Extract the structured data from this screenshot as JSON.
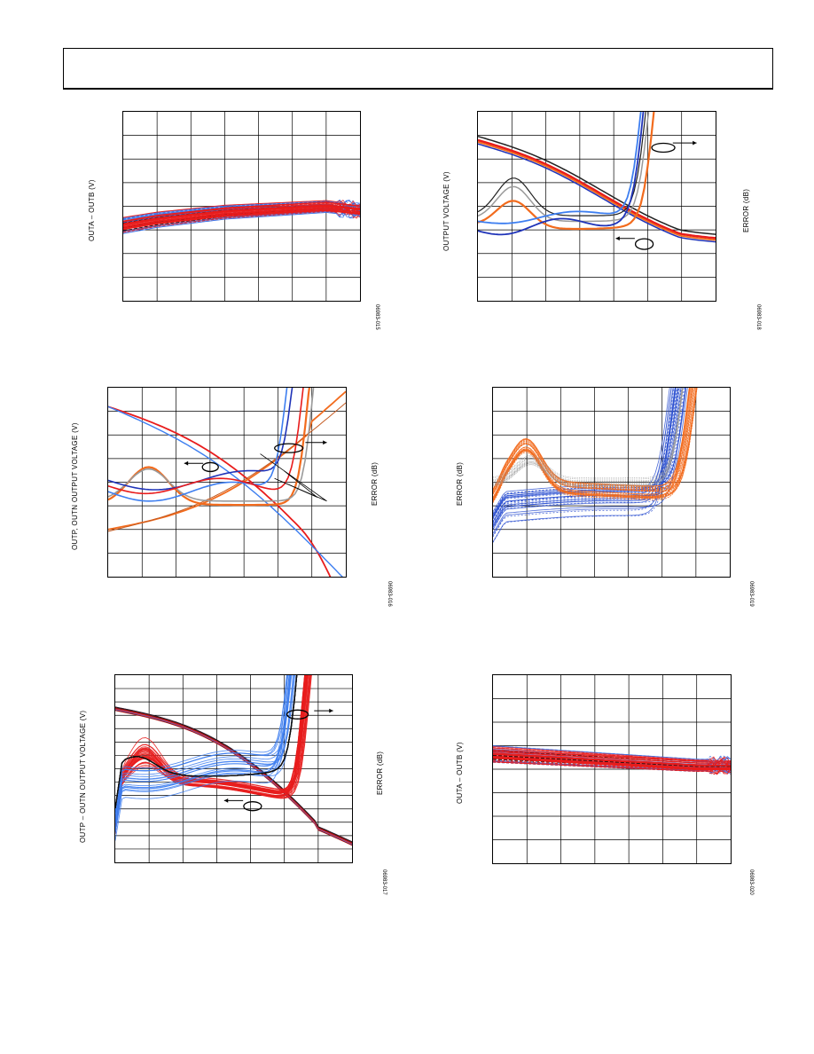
{
  "page": {
    "header_text": ""
  },
  "figures": [
    {
      "id": "p1",
      "ylabel": "OUTA – OUTB (V)",
      "ylabel2": "",
      "code": "06983-015"
    },
    {
      "id": "p2",
      "ylabel": "OUTPUT VOLTAGE (V)",
      "ylabel2": "ERROR (dB)",
      "code": "06983-018"
    },
    {
      "id": "p3",
      "ylabel": "OUTP, OUTN OUTPUT VOLTAGE (V)",
      "ylabel2": "ERROR (dB)",
      "code": "06983-016"
    },
    {
      "id": "p4",
      "ylabel": "ERROR (dB)",
      "ylabel2": "",
      "code": "06983-019"
    },
    {
      "id": "p5",
      "ylabel": "OUTP – OUTN OUTPUT VOLTAGE (V)",
      "ylabel2": "ERROR (dB)",
      "code": "06983-017"
    },
    {
      "id": "p6",
      "ylabel": "OUTA – OUTB (V)",
      "ylabel2": "",
      "code": "06983-020"
    }
  ],
  "chart_data": [
    {
      "type": "line",
      "ylabel": "OUTA – OUTB (V)",
      "grid": true,
      "grid_divisions": [
        7,
        8
      ],
      "series": [
        {
          "name": "",
          "values": [
            0.6,
            0.57,
            0.55,
            0.53,
            0.52,
            0.51,
            0.5,
            0.52
          ]
        }
      ],
      "colors": [
        "#3a72e8",
        "#e81c1c",
        "#101010"
      ]
    },
    {
      "type": "line",
      "ylabel": "OUTPUT VOLTAGE (V)",
      "y2label": "ERROR (dB)",
      "grid": true,
      "grid_divisions": [
        7,
        8
      ],
      "colors": [
        "#1f33b8",
        "#3d7ef0",
        "#f26b1d",
        "#e81c1c",
        "#9a9a9a",
        "#222222"
      ]
    },
    {
      "type": "line",
      "ylabel": "OUTP, OUTN OUTPUT VOLTAGE (V)",
      "y2label": "ERROR (dB)",
      "grid": true,
      "grid_divisions": [
        7,
        8
      ],
      "colors": [
        "#1f33b8",
        "#3d7ef0",
        "#f26b1d",
        "#e81c1c",
        "#9a9a9a",
        "#222222"
      ]
    },
    {
      "type": "line",
      "ylabel": "ERROR (dB)",
      "grid": true,
      "grid_divisions": [
        7,
        8
      ],
      "colors": [
        "#2a4fd0",
        "#f26b1d",
        "#9a9a9a"
      ]
    },
    {
      "type": "line",
      "ylabel": "OUTP – OUTN OUTPUT VOLTAGE (V)",
      "y2label": "ERROR (dB)",
      "grid": true,
      "grid_divisions": [
        7,
        14
      ],
      "colors": [
        "#3d7ef0",
        "#e81c1c",
        "#101010"
      ]
    },
    {
      "type": "line",
      "ylabel": "OUTA – OUTB (V)",
      "grid": true,
      "grid_divisions": [
        7,
        8
      ],
      "series": [
        {
          "name": "",
          "values": [
            0.42,
            0.43,
            0.44,
            0.45,
            0.46,
            0.47,
            0.48,
            0.48
          ]
        }
      ],
      "colors": [
        "#3a72e8",
        "#e81c1c",
        "#101010"
      ]
    }
  ]
}
